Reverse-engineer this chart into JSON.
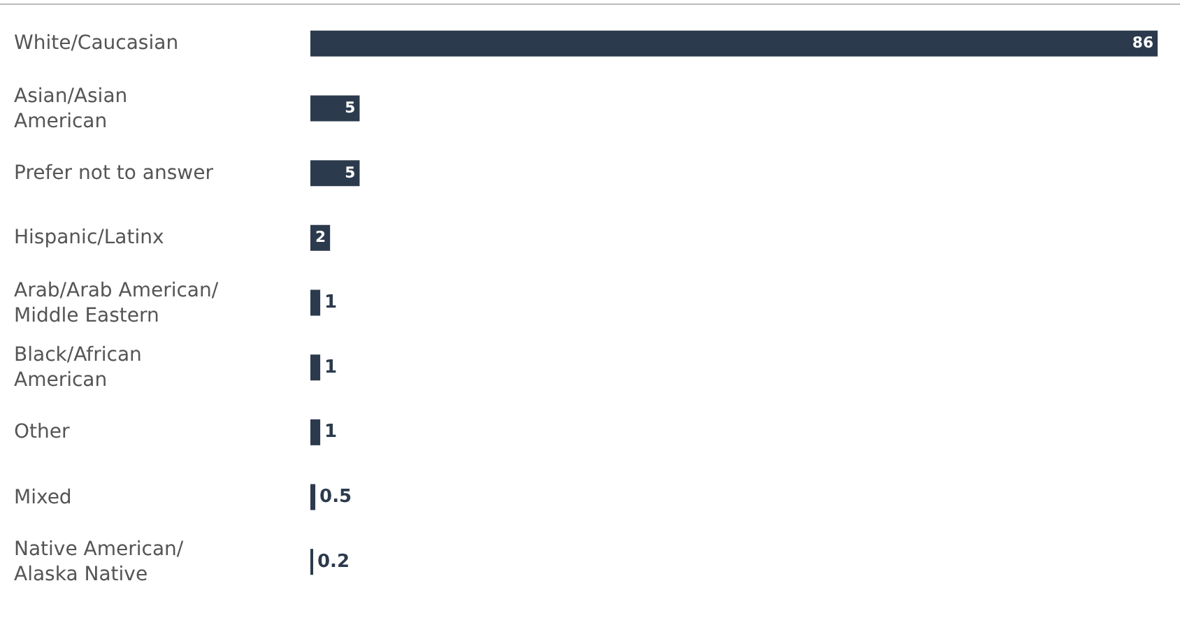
{
  "chart_data": {
    "type": "bar",
    "orientation": "horizontal",
    "data_labels": true,
    "categories": [
      "White/Caucasian",
      "Asian/Asian\nAmerican",
      "Prefer not to answer",
      "Hispanic/Latinx",
      "Arab/Arab American/\nMiddle Eastern",
      "Black/African\nAmerican",
      "Other",
      "Mixed",
      "Native American/\nAlaska Native"
    ],
    "values": [
      86,
      5,
      5,
      2,
      1,
      1,
      1,
      0.5,
      0.2
    ],
    "color": "#2c3a4d"
  }
}
